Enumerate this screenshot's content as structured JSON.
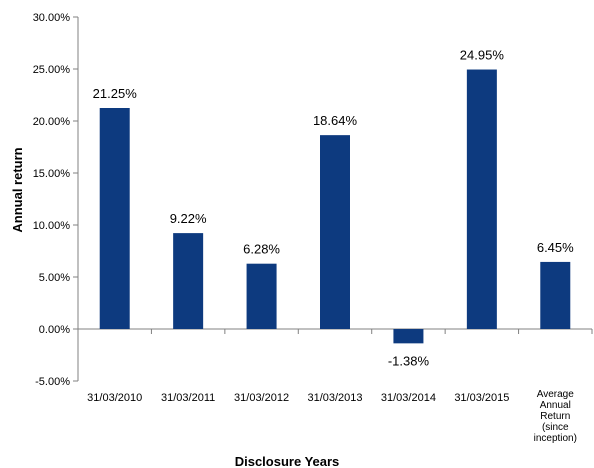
{
  "chart_data": {
    "type": "bar",
    "categories": [
      [
        "31/03/2010"
      ],
      [
        "31/03/2011"
      ],
      [
        "31/03/2012"
      ],
      [
        "31/03/2013"
      ],
      [
        "31/03/2014"
      ],
      [
        "31/03/2015"
      ],
      [
        "Average",
        "Annual",
        "Return",
        "(since",
        "inception)"
      ]
    ],
    "values": [
      21.25,
      9.22,
      6.28,
      18.64,
      -1.38,
      24.95,
      6.45
    ],
    "data_labels": [
      "21.25%",
      "9.22%",
      "6.28%",
      "18.64%",
      "-1.38%",
      "24.95%",
      "6.45%"
    ],
    "yticks": [
      30,
      25,
      20,
      15,
      10,
      5,
      0,
      -5
    ],
    "ytick_labels": [
      "30.00%",
      "25.00%",
      "20.00%",
      "15.00%",
      "10.00%",
      "5.00%",
      "0.00%",
      "-5.00%"
    ],
    "ylim": [
      -5,
      30
    ],
    "xlabel": "Disclosure Years",
    "ylabel": "Annual return",
    "grid": false,
    "legend": "none",
    "bar_color": "#0d3a7f",
    "axis_color": "#808080"
  }
}
